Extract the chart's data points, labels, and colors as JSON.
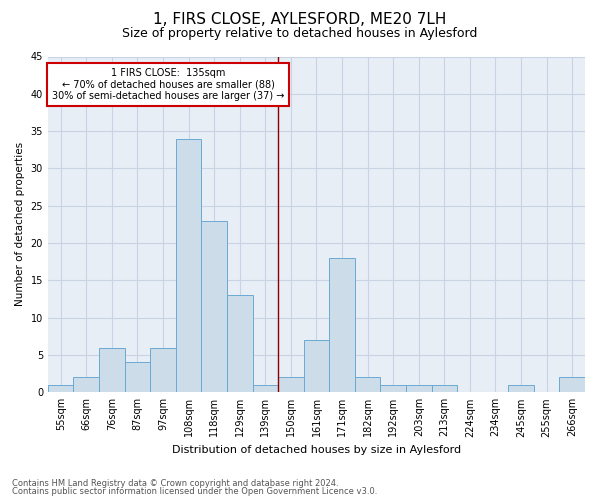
{
  "title": "1, FIRS CLOSE, AYLESFORD, ME20 7LH",
  "subtitle": "Size of property relative to detached houses in Aylesford",
  "xlabel": "Distribution of detached houses by size in Aylesford",
  "ylabel": "Number of detached properties",
  "bar_labels": [
    "55sqm",
    "66sqm",
    "76sqm",
    "87sqm",
    "97sqm",
    "108sqm",
    "118sqm",
    "129sqm",
    "139sqm",
    "150sqm",
    "161sqm",
    "171sqm",
    "182sqm",
    "192sqm",
    "203sqm",
    "213sqm",
    "224sqm",
    "234sqm",
    "245sqm",
    "255sqm",
    "266sqm"
  ],
  "bar_values": [
    1,
    2,
    6,
    4,
    6,
    34,
    23,
    13,
    1,
    2,
    7,
    18,
    2,
    1,
    1,
    1,
    0,
    0,
    1,
    0,
    2
  ],
  "bar_color": "#ccdce8",
  "bar_edge_color": "#6aaad4",
  "vline_x": 8.5,
  "vline_color": "#8b0000",
  "annotation_text": "1 FIRS CLOSE:  135sqm\n← 70% of detached houses are smaller (88)\n30% of semi-detached houses are larger (37) →",
  "annotation_box_color": "#ffffff",
  "annotation_box_edge": "#cc0000",
  "ylim": [
    0,
    45
  ],
  "yticks": [
    0,
    5,
    10,
    15,
    20,
    25,
    30,
    35,
    40,
    45
  ],
  "grid_color": "#c8d4e4",
  "background_color": "#e8eef6",
  "footer1": "Contains HM Land Registry data © Crown copyright and database right 2024.",
  "footer2": "Contains public sector information licensed under the Open Government Licence v3.0.",
  "title_fontsize": 11,
  "subtitle_fontsize": 9,
  "xlabel_fontsize": 8,
  "ylabel_fontsize": 7.5,
  "tick_fontsize": 7,
  "annot_fontsize": 7,
  "footer_fontsize": 6
}
